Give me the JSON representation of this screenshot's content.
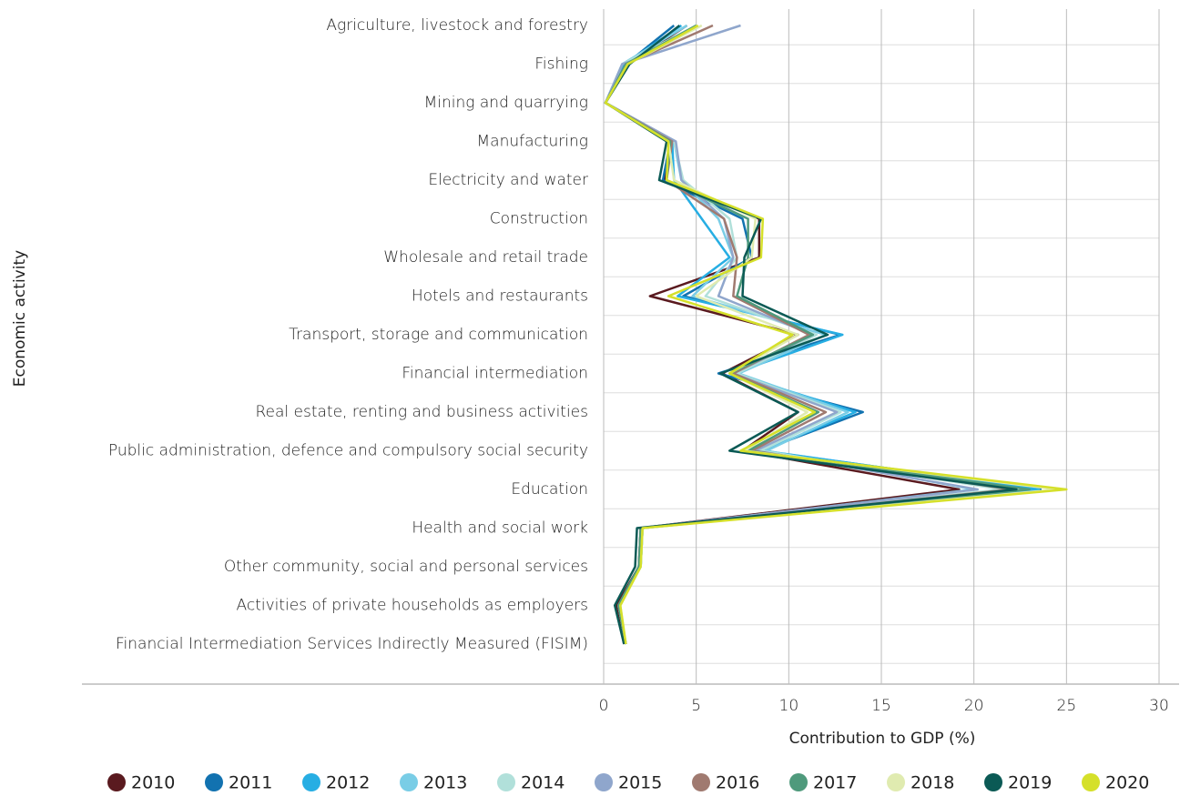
{
  "chart_data": {
    "type": "line",
    "x_label": "Contribution to GDP (%)",
    "y_label": "Economic activity",
    "categories": [
      "Agriculture, livestock and forestry",
      "Fishing",
      "Mining and quarrying",
      "Manufacturing",
      "Electricity and water",
      "Construction",
      "Wholesale and retail trade",
      "Hotels and restaurants",
      "Transport, storage and communication",
      "Financial intermediation",
      "Real estate, renting and business activities",
      "Public administration, defence and compulsory social security",
      "Education",
      "Health and social work",
      "Other community, social and personal services",
      "Activities of private households as employers",
      "Financial Intermediation Services Indirectly Measured (FISIM)"
    ],
    "xlim": [
      0,
      30
    ],
    "xticks": [
      0,
      5,
      10,
      15,
      20,
      25,
      30
    ],
    "grid": true,
    "series": [
      {
        "name": "2010",
        "color": "#5a1a1f",
        "values": [
          4.5,
          1.3,
          0.1,
          3.6,
          3.3,
          8.4,
          8.4,
          2.5,
          10.5,
          6.4,
          10.5,
          7.5,
          19.2,
          2.0,
          1.9,
          0.7,
          1.1
        ]
      },
      {
        "name": "2011",
        "color": "#1272b0",
        "values": [
          3.8,
          1.2,
          0.1,
          3.6,
          3.2,
          7.5,
          8.0,
          4.3,
          12.8,
          6.2,
          14.0,
          8.5,
          23.6,
          2.1,
          2.0,
          0.8,
          1.2
        ]
      },
      {
        "name": "2012",
        "color": "#27aee3",
        "values": [
          4.2,
          1.1,
          0.1,
          3.7,
          3.8,
          5.3,
          6.8,
          4.0,
          12.9,
          7.0,
          13.6,
          8.6,
          23.5,
          2.1,
          2.0,
          0.8,
          1.2
        ]
      },
      {
        "name": "2013",
        "color": "#79cde6",
        "values": [
          4.5,
          1.0,
          0.1,
          3.8,
          4.2,
          6.2,
          7.0,
          4.8,
          12.0,
          7.3,
          13.2,
          8.8,
          20.0,
          2.1,
          2.0,
          0.8,
          1.2
        ]
      },
      {
        "name": "2014",
        "color": "#b1e0da",
        "values": [
          5.0,
          1.0,
          0.1,
          3.8,
          4.3,
          6.8,
          7.2,
          5.5,
          11.5,
          7.2,
          12.8,
          8.5,
          21.5,
          2.1,
          2.0,
          0.8,
          1.2
        ]
      },
      {
        "name": "2015",
        "color": "#8fa6cc",
        "values": [
          7.4,
          1.0,
          0.1,
          3.9,
          4.2,
          6.5,
          7.0,
          6.2,
          11.3,
          7.0,
          12.6,
          8.2,
          20.2,
          2.0,
          1.9,
          0.8,
          1.2
        ]
      },
      {
        "name": "2016",
        "color": "#a07a70",
        "values": [
          5.9,
          1.2,
          0.1,
          3.7,
          3.4,
          6.5,
          7.2,
          7.0,
          11.1,
          7.0,
          12.0,
          8.0,
          22.0,
          2.0,
          1.9,
          0.8,
          1.2
        ]
      },
      {
        "name": "2017",
        "color": "#4f9a7c",
        "values": [
          5.0,
          1.2,
          0.1,
          3.6,
          3.4,
          7.8,
          7.8,
          7.2,
          11.3,
          6.8,
          11.6,
          7.8,
          23.0,
          2.0,
          1.9,
          0.8,
          1.2
        ]
      },
      {
        "name": "2018",
        "color": "#e0ebb0",
        "values": [
          5.3,
          1.3,
          0.1,
          3.5,
          3.8,
          8.2,
          8.0,
          5.0,
          10.5,
          6.8,
          11.0,
          7.6,
          24.5,
          2.1,
          2.0,
          0.9,
          1.2
        ]
      },
      {
        "name": "2019",
        "color": "#0b5a55",
        "values": [
          4.1,
          1.4,
          0.1,
          3.4,
          3.0,
          8.5,
          7.6,
          7.5,
          12.1,
          6.3,
          10.5,
          6.8,
          22.3,
          1.8,
          1.7,
          0.6,
          1.1
        ]
      },
      {
        "name": "2020",
        "color": "#d5e02a",
        "values": [
          5.1,
          1.3,
          0.1,
          3.5,
          3.4,
          8.6,
          8.5,
          3.5,
          10.2,
          6.8,
          11.4,
          7.4,
          25.0,
          2.1,
          2.0,
          0.9,
          1.2
        ]
      }
    ]
  }
}
